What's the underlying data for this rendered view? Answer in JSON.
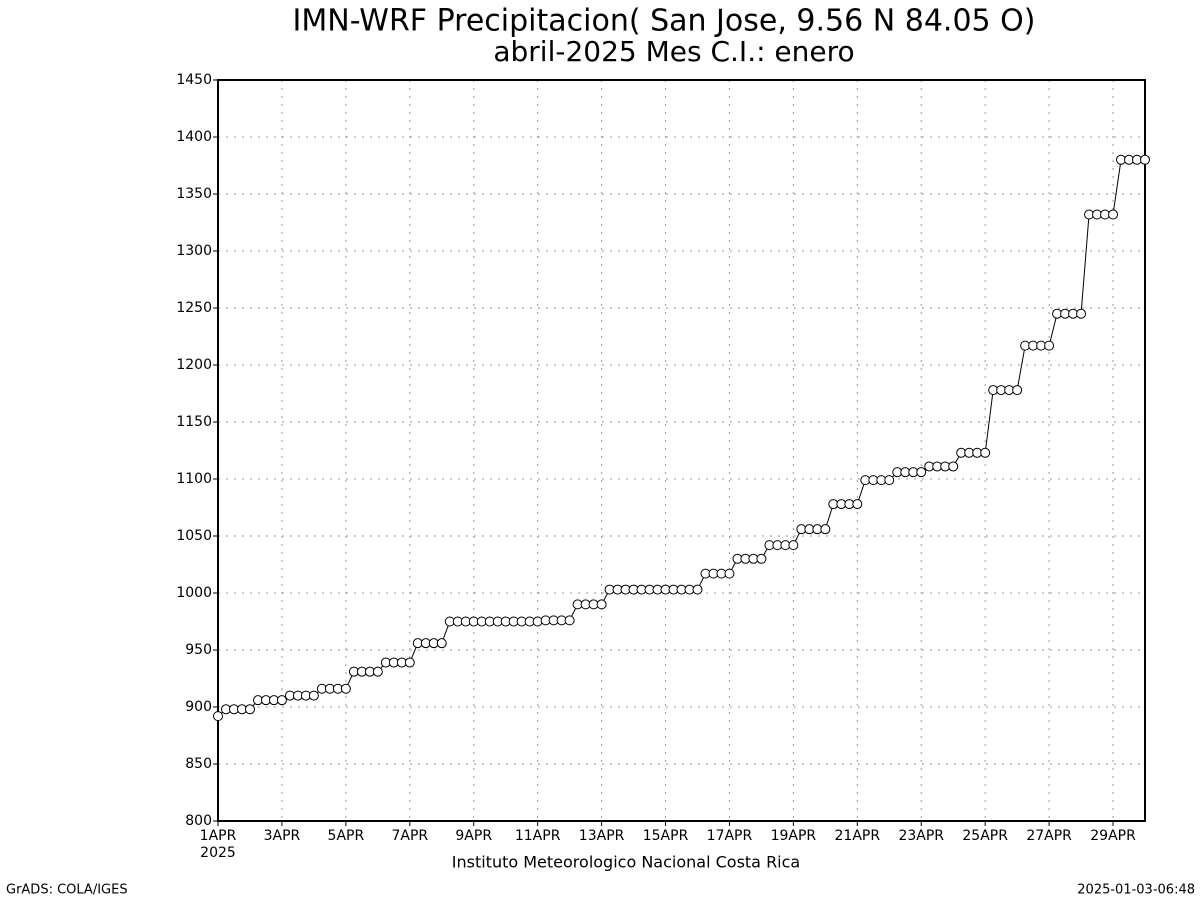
{
  "chart_data": {
    "type": "line",
    "title": "IMN-WRF  Precipitacion( San Jose, 9.56  N 84.05  O)",
    "subtitle": "abril-2025 Mes C.I.: enero",
    "xlabel": "Instituto Meteorologico Nacional Costa Rica",
    "footer_left": "GrADS: COLA/IGES",
    "footer_right": "2025-01-03-06:48",
    "xtick_sublabel": "2025",
    "x": [
      1,
      1.25,
      1.5,
      1.75,
      2,
      2.25,
      2.5,
      2.75,
      3,
      3.25,
      3.5,
      3.75,
      4,
      4.25,
      4.5,
      4.75,
      5,
      5.25,
      5.5,
      5.75,
      6,
      6.25,
      6.5,
      6.75,
      7,
      7.25,
      7.5,
      7.75,
      8,
      8.25,
      8.5,
      8.75,
      9,
      9.25,
      9.5,
      9.75,
      10,
      10.25,
      10.5,
      10.75,
      11,
      11.25,
      11.5,
      11.75,
      12,
      12.25,
      12.5,
      12.75,
      13,
      13.25,
      13.5,
      13.75,
      14,
      14.25,
      14.5,
      14.75,
      15,
      15.25,
      15.5,
      15.75,
      16,
      16.25,
      16.5,
      16.75,
      17,
      17.25,
      17.5,
      17.75,
      18,
      18.25,
      18.5,
      18.75,
      19,
      19.25,
      19.5,
      19.75,
      20,
      20.25,
      20.5,
      20.75,
      21,
      21.25,
      21.5,
      21.75,
      22,
      22.25,
      22.5,
      22.75,
      23,
      23.25,
      23.5,
      23.75,
      24,
      24.25,
      24.5,
      24.75,
      25,
      25.25,
      25.5,
      25.75,
      26,
      26.25,
      26.5,
      26.75,
      27,
      27.25,
      27.5,
      27.75,
      28,
      28.25,
      28.5,
      28.75,
      29,
      29.25,
      29.5,
      29.75,
      30
    ],
    "values": [
      892,
      898,
      898,
      898,
      898,
      906,
      906,
      906,
      906,
      910,
      910,
      910,
      910,
      916,
      916,
      916,
      916,
      931,
      931,
      931,
      931,
      939,
      939,
      939,
      939,
      956,
      956,
      956,
      956,
      975,
      975,
      975,
      975,
      975,
      975,
      975,
      975,
      975,
      975,
      975,
      975,
      976,
      976,
      976,
      976,
      990,
      990,
      990,
      990,
      1003,
      1003,
      1003,
      1003,
      1003,
      1003,
      1003,
      1003,
      1003,
      1003,
      1003,
      1003,
      1017,
      1017,
      1017,
      1017,
      1030,
      1030,
      1030,
      1030,
      1042,
      1042,
      1042,
      1042,
      1056,
      1056,
      1056,
      1056,
      1078,
      1078,
      1078,
      1078,
      1099,
      1099,
      1099,
      1099,
      1106,
      1106,
      1106,
      1106,
      1111,
      1111,
      1111,
      1111,
      1123,
      1123,
      1123,
      1123,
      1178,
      1178,
      1178,
      1178,
      1217,
      1217,
      1217,
      1217,
      1245,
      1245,
      1245,
      1245,
      1332,
      1332,
      1332,
      1332,
      1380,
      1380,
      1380,
      1380
    ],
    "color": "#000000",
    "marker_fill": "#ffffff",
    "xlim": [
      1,
      30
    ],
    "xticks": [
      {
        "value": 1,
        "label": "1APR"
      },
      {
        "value": 3,
        "label": "3APR"
      },
      {
        "value": 5,
        "label": "5APR"
      },
      {
        "value": 7,
        "label": "7APR"
      },
      {
        "value": 9,
        "label": "9APR"
      },
      {
        "value": 11,
        "label": "11APR"
      },
      {
        "value": 13,
        "label": "13APR"
      },
      {
        "value": 15,
        "label": "15APR"
      },
      {
        "value": 17,
        "label": "17APR"
      },
      {
        "value": 19,
        "label": "19APR"
      },
      {
        "value": 21,
        "label": "21APR"
      },
      {
        "value": 23,
        "label": "23APR"
      },
      {
        "value": 25,
        "label": "25APR"
      },
      {
        "value": 27,
        "label": "27APR"
      },
      {
        "value": 29,
        "label": "29APR"
      }
    ],
    "ylim": [
      800,
      1450
    ],
    "yticks": [
      800,
      850,
      900,
      950,
      1000,
      1050,
      1100,
      1150,
      1200,
      1250,
      1300,
      1350,
      1400,
      1450
    ],
    "grid": true
  }
}
